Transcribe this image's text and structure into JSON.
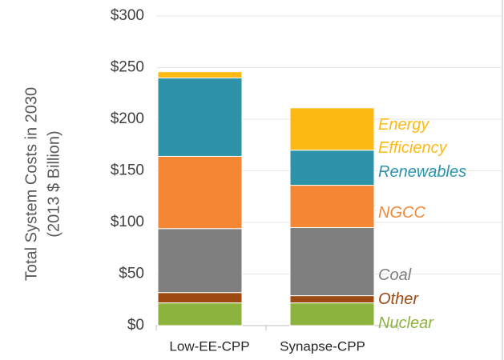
{
  "chart_data": {
    "type": "stacked_bar",
    "y_label": [
      "Total System Costs in 2030",
      "(2013 $ Billion)"
    ],
    "categories": [
      "Low-EE-CPP",
      "Synapse-CPP"
    ],
    "series": [
      {
        "name": "Nuclear",
        "color": "#8cb33d",
        "values": [
          22,
          22
        ]
      },
      {
        "name": "Other",
        "color": "#9c4a12",
        "values": [
          10,
          7
        ]
      },
      {
        "name": "Coal",
        "color": "#7f7f7f",
        "values": [
          62,
          66
        ]
      },
      {
        "name": "NGCC",
        "color": "#f58634",
        "values": [
          70,
          41
        ]
      },
      {
        "name": "Renewables",
        "color": "#2e93a8",
        "values": [
          76,
          34
        ]
      },
      {
        "name": "Energy Efficiency",
        "color": "#fdb913",
        "values": [
          6,
          41
        ]
      }
    ],
    "ylim": [
      0,
      300
    ],
    "yticks": [
      {
        "value": 0,
        "label": "$0"
      },
      {
        "value": 50,
        "label": "$50"
      },
      {
        "value": 100,
        "label": "$100"
      },
      {
        "value": 150,
        "label": "$150"
      },
      {
        "value": 200,
        "label": "$200"
      },
      {
        "value": 250,
        "label": "$250"
      },
      {
        "value": 300,
        "label": "$300"
      }
    ],
    "grid": true
  }
}
